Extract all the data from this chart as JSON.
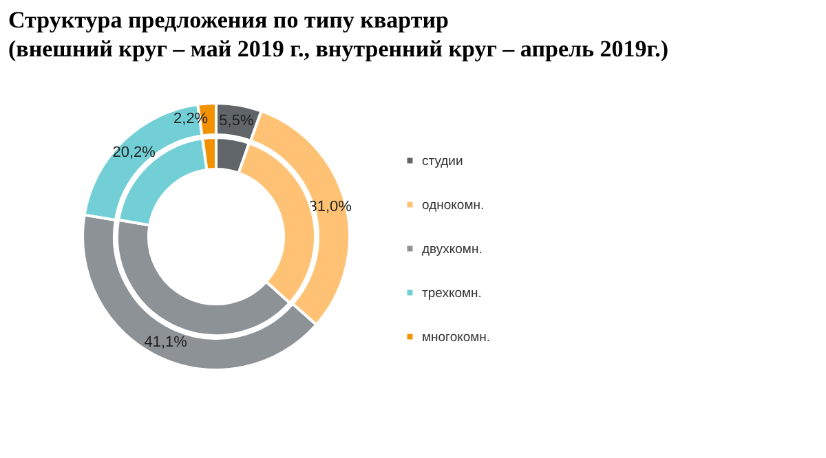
{
  "chart_data": {
    "type": "donut",
    "title": [
      "Структура предложения по типу квартир",
      "(внешний круг – май 2019 г., внутренний круг – апрель 2019г.)"
    ],
    "categories": [
      "студии",
      "однокомн.",
      "двухкомн.",
      "трехкомн.",
      "многокомн."
    ],
    "colors": [
      "#5f6569",
      "#ffc274",
      "#8c9296",
      "#72cfd6",
      "#f39200"
    ],
    "series": [
      {
        "values": [
          5.5,
          31.0,
          41.1,
          20.2,
          2.2
        ],
        "value_labels": [
          "5,5%",
          "31,0%",
          "41,1%",
          "20,2%",
          "2,2%"
        ]
      },
      {
        "values": [
          5.4,
          31.3,
          41.0,
          20.1,
          2.2
        ]
      }
    ],
    "legend": "right"
  }
}
